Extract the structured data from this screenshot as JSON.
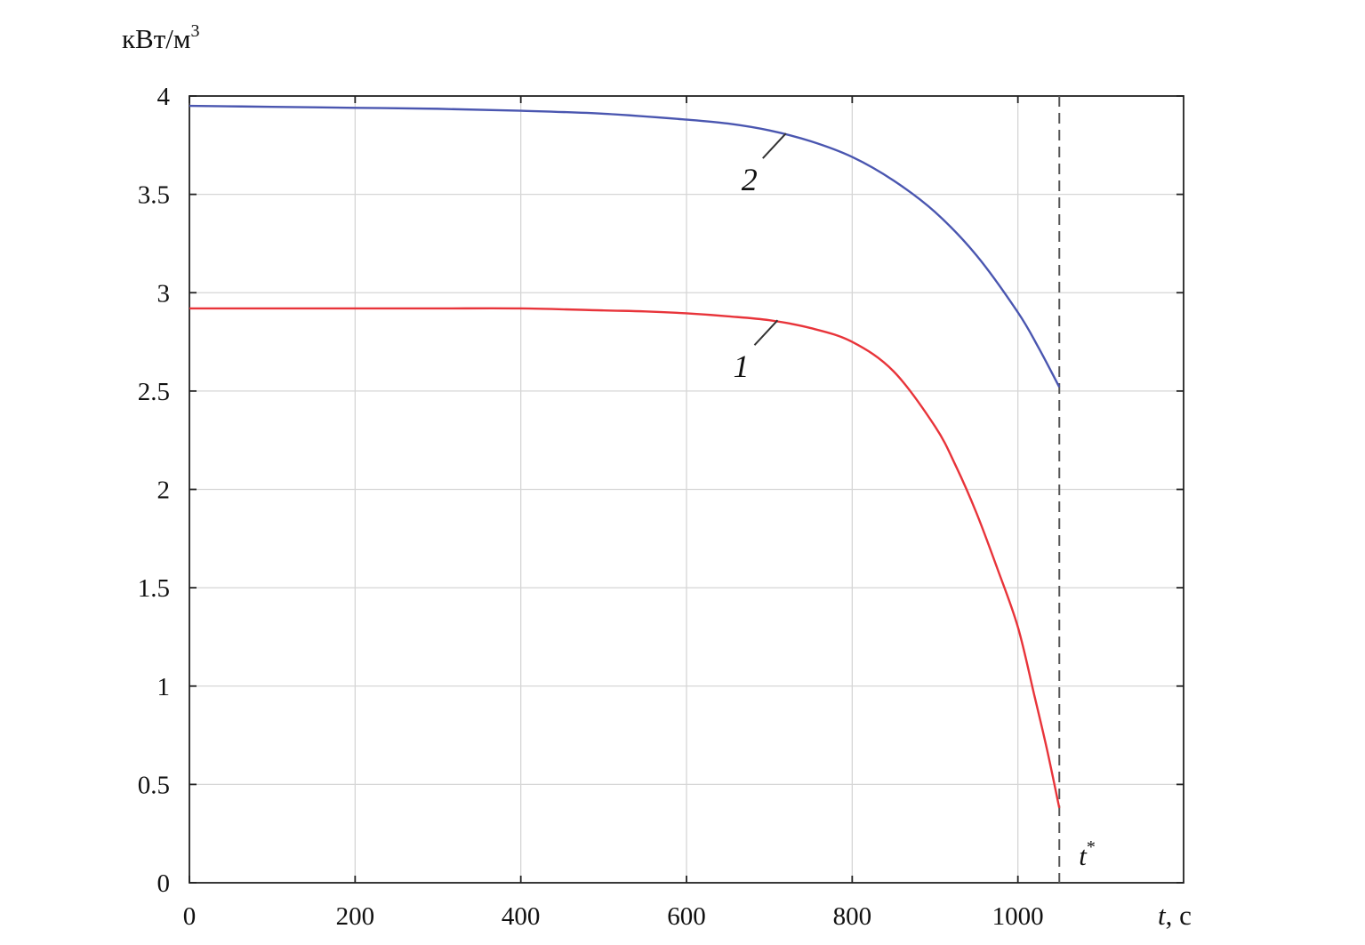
{
  "chart_data": {
    "type": "line",
    "ylabel_unit": "кВт/м",
    "ylabel_unit_sup": "3",
    "xlabel_var": "t",
    "xlabel_unit": ", с",
    "xlim": [
      0,
      1200
    ],
    "ylim": [
      0,
      4
    ],
    "xticks": [
      0,
      200,
      400,
      600,
      800,
      1000
    ],
    "yticks": [
      0,
      0.5,
      1,
      1.5,
      2,
      2.5,
      3,
      3.5,
      4
    ],
    "ytick_labels": [
      "0",
      "0.5",
      "1",
      "1.5",
      "2",
      "2.5",
      "3",
      "3.5",
      "4"
    ],
    "grid": true,
    "marker_line": {
      "x": 1050,
      "label": "t",
      "label_sup": "*",
      "color": "#555555",
      "style": "dashed"
    },
    "series": [
      {
        "name": "1",
        "color": "#e8343a",
        "label_anchor": {
          "x": 710,
          "y": 2.86
        },
        "x": [
          0,
          100,
          200,
          300,
          400,
          500,
          550,
          600,
          650,
          700,
          750,
          800,
          850,
          900,
          925,
          950,
          975,
          1000,
          1020,
          1035,
          1050
        ],
        "y": [
          2.92,
          2.92,
          2.92,
          2.92,
          2.92,
          2.91,
          2.905,
          2.895,
          2.88,
          2.86,
          2.82,
          2.75,
          2.6,
          2.32,
          2.12,
          1.88,
          1.6,
          1.3,
          0.95,
          0.68,
          0.38
        ]
      },
      {
        "name": "2",
        "color": "#4a56b0",
        "label_anchor": {
          "x": 720,
          "y": 3.81
        },
        "x": [
          0,
          100,
          200,
          300,
          400,
          500,
          600,
          650,
          700,
          750,
          800,
          850,
          900,
          950,
          1000,
          1025,
          1050
        ],
        "y": [
          3.95,
          3.945,
          3.94,
          3.935,
          3.925,
          3.91,
          3.88,
          3.86,
          3.825,
          3.77,
          3.69,
          3.57,
          3.41,
          3.19,
          2.9,
          2.72,
          2.52
        ]
      }
    ]
  }
}
